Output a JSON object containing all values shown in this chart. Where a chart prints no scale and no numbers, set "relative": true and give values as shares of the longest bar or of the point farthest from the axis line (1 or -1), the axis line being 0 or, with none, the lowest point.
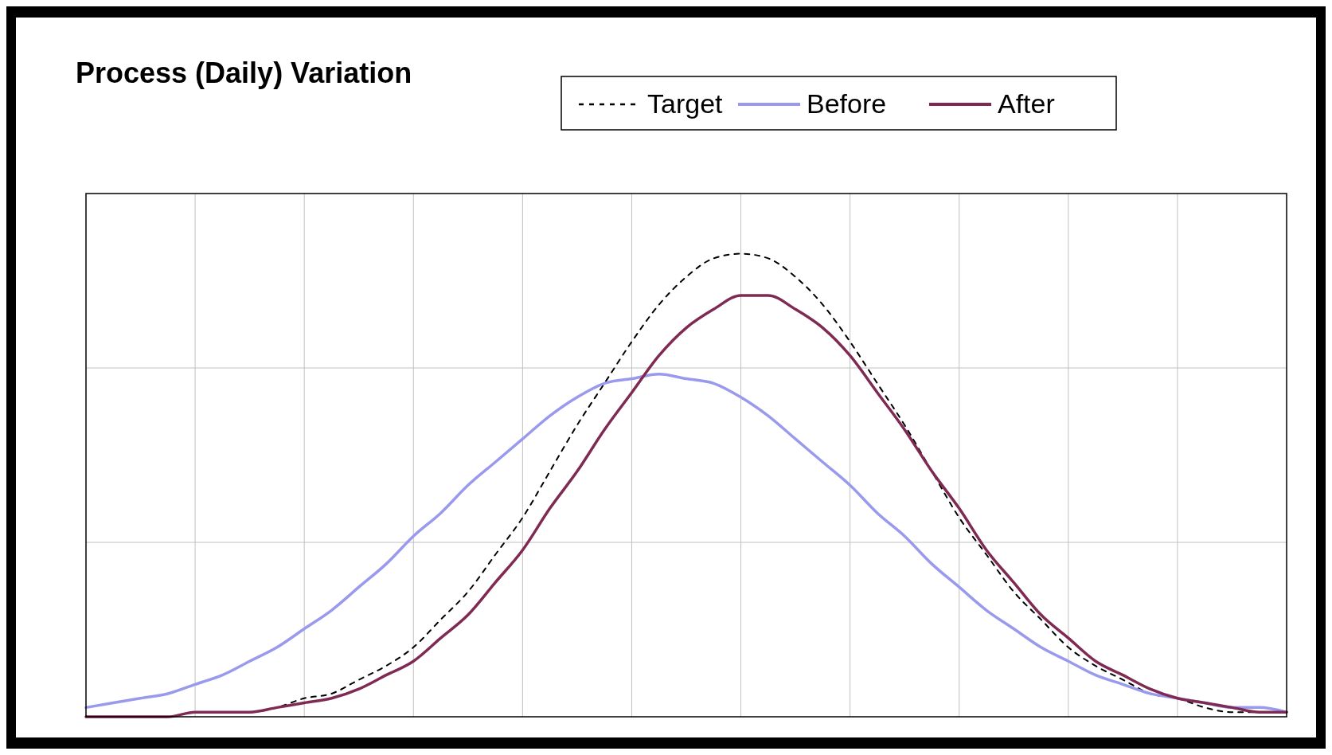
{
  "chart_data": {
    "type": "line",
    "title": "Process (Daily) Variation",
    "relative": true,
    "grid": true,
    "legend": "top",
    "categories": [
      null,
      null,
      null,
      null,
      null,
      null,
      null,
      null,
      null,
      null,
      null,
      null,
      null,
      null,
      null,
      null,
      null,
      null,
      null,
      null,
      null,
      null,
      null,
      null,
      null,
      null,
      null,
      null,
      null,
      null,
      null,
      null,
      null,
      null,
      null,
      null,
      null,
      null,
      null,
      null,
      null,
      null,
      null,
      null,
      null
    ],
    "series": [
      {
        "name": "Target",
        "color": "#000000",
        "line_style": "dashed",
        "values": [
          0,
          0,
          0,
          0,
          0.01,
          0.01,
          0.01,
          0.02,
          0.04,
          0.05,
          0.08,
          0.11,
          0.15,
          0.21,
          0.27,
          0.35,
          0.43,
          0.53,
          0.63,
          0.72,
          0.81,
          0.89,
          0.95,
          0.99,
          1.0,
          0.99,
          0.95,
          0.89,
          0.81,
          0.72,
          0.63,
          0.53,
          0.43,
          0.35,
          0.27,
          0.21,
          0.15,
          0.11,
          0.08,
          0.05,
          0.04,
          0.02,
          0.01,
          0.01,
          0.01
        ]
      },
      {
        "name": "Before",
        "color": "#9999ee",
        "line_style": "solid",
        "values": [
          0.02,
          0.03,
          0.04,
          0.05,
          0.07,
          0.09,
          0.12,
          0.15,
          0.19,
          0.23,
          0.28,
          0.33,
          0.39,
          0.44,
          0.5,
          0.55,
          0.6,
          0.65,
          0.69,
          0.72,
          0.73,
          0.74,
          0.73,
          0.72,
          0.69,
          0.65,
          0.6,
          0.55,
          0.5,
          0.44,
          0.39,
          0.33,
          0.28,
          0.23,
          0.19,
          0.15,
          0.12,
          0.09,
          0.07,
          0.05,
          0.04,
          0.03,
          0.02,
          0.02,
          0.01
        ]
      },
      {
        "name": "After",
        "color": "#7f2a52",
        "line_style": "solid",
        "values": [
          0,
          0,
          0,
          0,
          0.01,
          0.01,
          0.01,
          0.02,
          0.03,
          0.04,
          0.06,
          0.09,
          0.12,
          0.17,
          0.22,
          0.29,
          0.36,
          0.45,
          0.53,
          0.62,
          0.7,
          0.78,
          0.84,
          0.88,
          0.91,
          0.91,
          0.88,
          0.84,
          0.78,
          0.7,
          0.62,
          0.53,
          0.45,
          0.36,
          0.29,
          0.22,
          0.17,
          0.12,
          0.09,
          0.06,
          0.04,
          0.03,
          0.02,
          0.01,
          0.01
        ]
      }
    ]
  }
}
